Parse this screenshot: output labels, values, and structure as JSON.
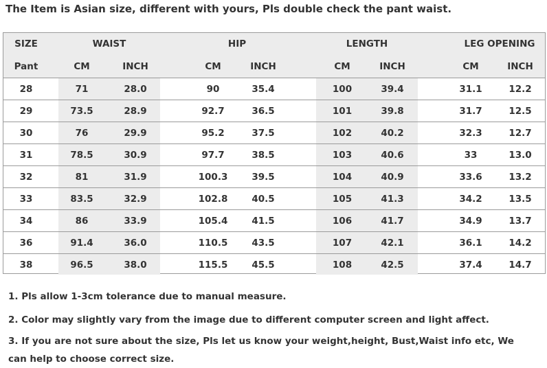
{
  "title": "The Item is Asian size, different with yours, Pls double check the pant waist.",
  "table": {
    "group_headers": [
      "SIZE",
      "WAIST",
      "HIP",
      "LENGTH",
      "LEG OPENING"
    ],
    "sub_headers": [
      "Pant",
      "CM",
      "INCH",
      "CM",
      "INCH",
      "CM",
      "INCH",
      "CM",
      "INCH"
    ],
    "rows": [
      [
        "28",
        "71",
        "28.0",
        "90",
        "35.4",
        "100",
        "39.4",
        "31.1",
        "12.2"
      ],
      [
        "29",
        "73.5",
        "28.9",
        "92.7",
        "36.5",
        "101",
        "39.8",
        "31.7",
        "12.5"
      ],
      [
        "30",
        "76",
        "29.9",
        "95.2",
        "37.5",
        "102",
        "40.2",
        "32.3",
        "12.7"
      ],
      [
        "31",
        "78.5",
        "30.9",
        "97.7",
        "38.5",
        "103",
        "40.6",
        "33",
        "13.0"
      ],
      [
        "32",
        "81",
        "31.9",
        "100.3",
        "39.5",
        "104",
        "40.9",
        "33.6",
        "13.2"
      ],
      [
        "33",
        "83.5",
        "32.9",
        "102.8",
        "40.5",
        "105",
        "41.3",
        "34.2",
        "13.5"
      ],
      [
        "34",
        "86",
        "33.9",
        "105.4",
        "41.5",
        "106",
        "41.7",
        "34.9",
        "13.7"
      ],
      [
        "36",
        "91.4",
        "36.0",
        "110.5",
        "43.5",
        "107",
        "42.1",
        "36.1",
        "14.2"
      ],
      [
        "38",
        "96.5",
        "38.0",
        "115.5",
        "45.5",
        "108",
        "42.5",
        "37.4",
        "14.7"
      ]
    ]
  },
  "notes": [
    "1.  Pls allow 1-3cm tolerance due to manual measure.",
    "2.  Color may slightly vary from the image due to different computer screen and light affect.",
    "3.  If you are not sure about the size, Pls let us know your weight,height, Bust,Waist info etc, We can help to choose correct size."
  ],
  "colors": {
    "header_bg": "#ececec",
    "band_bg": "#ececec",
    "border": "#9a9a9a",
    "text": "#333333"
  }
}
